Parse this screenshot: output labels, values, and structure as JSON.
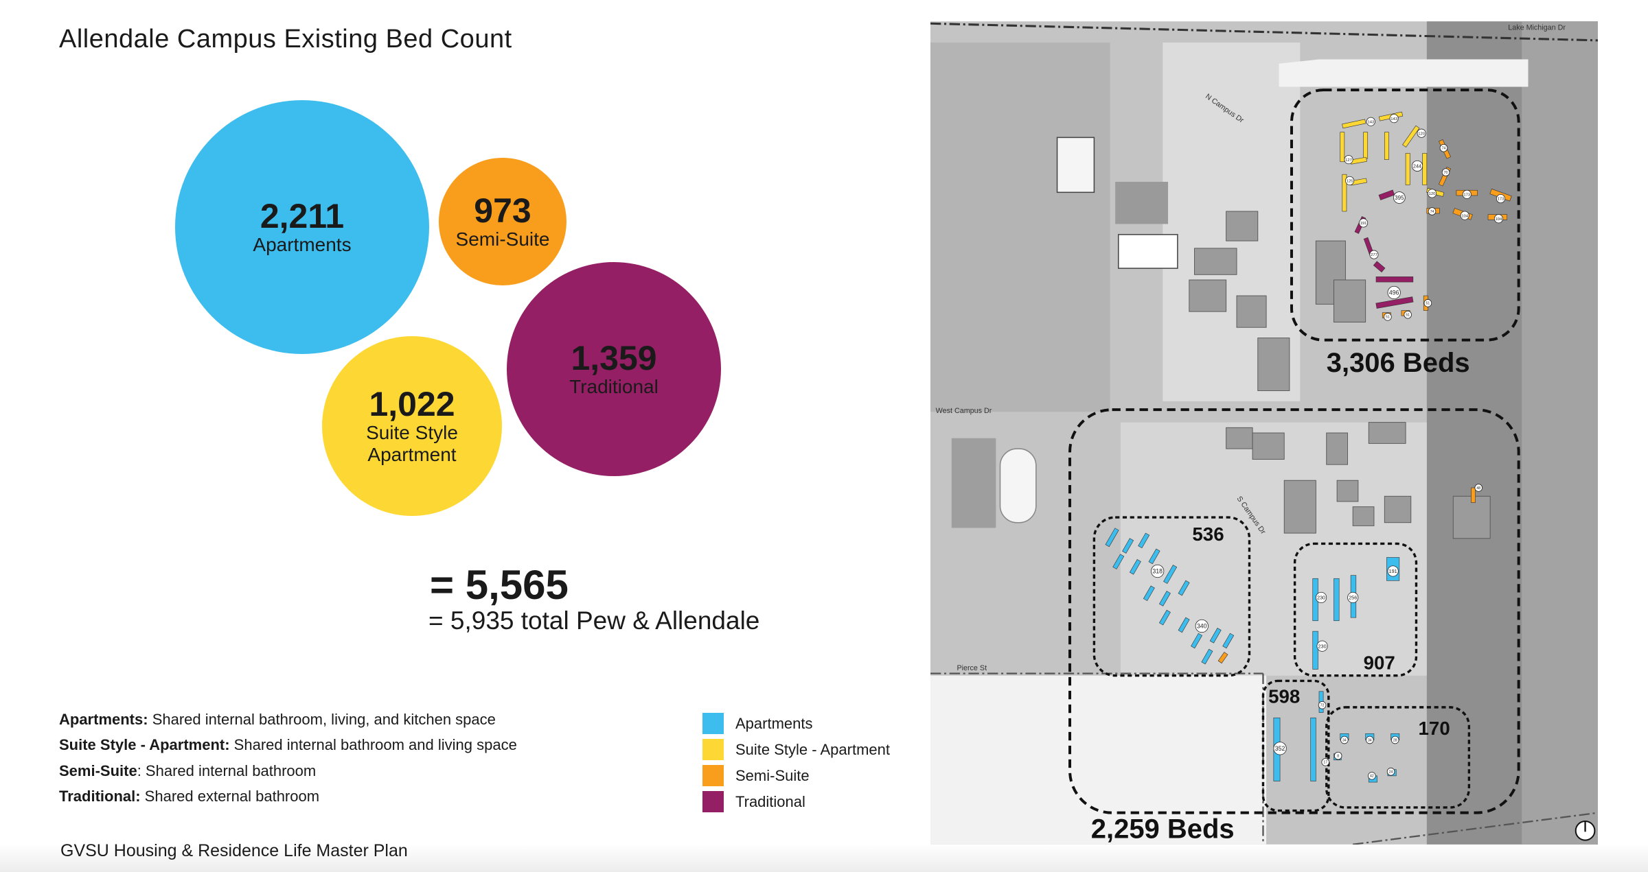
{
  "title": "Allendale Campus Existing Bed Count",
  "colors": {
    "apartments": "#3dbdee",
    "suite_style": "#fdd835",
    "semi_suite": "#f99d1c",
    "traditional": "#951f64"
  },
  "bubbles": {
    "apartments": {
      "value": "2,211",
      "label": "Apartments"
    },
    "semi_suite": {
      "value": "973",
      "label": "Semi-Suite"
    },
    "traditional": {
      "value": "1,359",
      "label": "Traditional"
    },
    "suite_style": {
      "value": "1,022",
      "label_line1": "Suite Style",
      "label_line2": "Apartment"
    }
  },
  "total": {
    "allendale": "= 5,565",
    "combined": "= 5,935 total Pew & Allendale"
  },
  "definitions": [
    {
      "term": "Apartments:",
      "text": " Shared internal bathroom, living, and kitchen space"
    },
    {
      "term": "Suite Style - Apartment:",
      "text": " Shared internal bathroom and living space"
    },
    {
      "term": "Semi-Suite",
      "text": ": Shared internal bathroom"
    },
    {
      "term": "Traditional:",
      "text": " Shared external bathroom"
    }
  ],
  "legend": [
    {
      "label": "Apartments",
      "color": "#3dbdee"
    },
    {
      "label": "Suite Style - Apartment",
      "color": "#fdd835"
    },
    {
      "label": "Semi-Suite",
      "color": "#f99d1c"
    },
    {
      "label": "Traditional",
      "color": "#951f64"
    }
  ],
  "footer": "GVSU Housing & Residence Life Master Plan",
  "map": {
    "roads": {
      "lake_michigan": "Lake Michigan Dr",
      "n_campus": "N Campus Dr",
      "west_campus": "West Campus Dr",
      "s_campus": "S Campus Dr",
      "pierce": "Pierce St"
    },
    "zones": {
      "north_total": "3,306 Beds",
      "south_total": "2,259 Beds",
      "z536": "536",
      "z907": "907",
      "z598": "598",
      "z170": "170"
    },
    "bed_labels": [
      "143",
      "143",
      "120",
      "127",
      "244",
      "74",
      "70",
      "125",
      "395",
      "120",
      "173",
      "173",
      "74",
      "104",
      "104",
      "191",
      "277",
      "496",
      "51",
      "51",
      "51",
      "48",
      "318",
      "340",
      "191",
      "230",
      "256",
      "230",
      "352",
      "34",
      "34",
      "28",
      "8",
      "42",
      "24",
      "72",
      "17"
    ],
    "north_arrow_icon": "compass-north-icon"
  }
}
